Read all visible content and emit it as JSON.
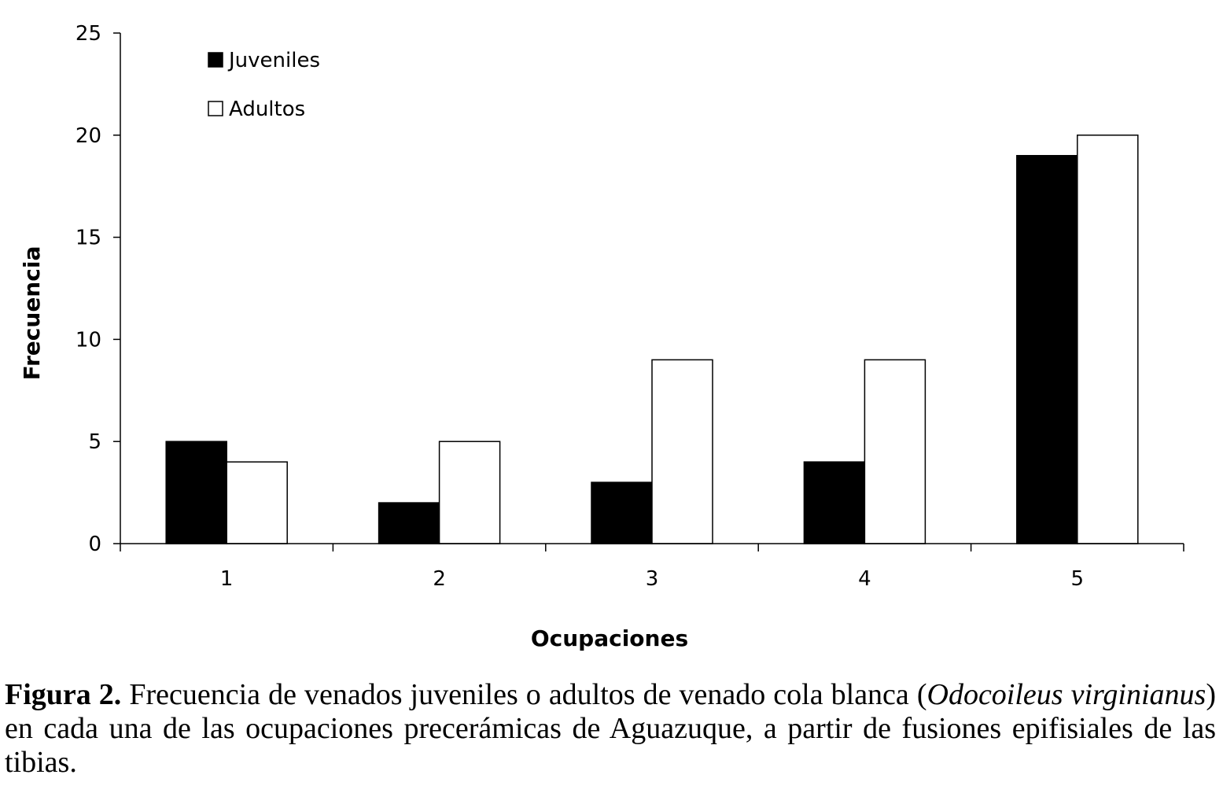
{
  "chart_data": {
    "type": "bar",
    "categories": [
      "1",
      "2",
      "3",
      "4",
      "5"
    ],
    "series": [
      {
        "name": "Juveniles",
        "color": "#000000",
        "values": [
          5,
          2,
          3,
          4,
          19
        ]
      },
      {
        "name": "Adultos",
        "color": "#ffffff",
        "values": [
          4,
          5,
          9,
          9,
          20
        ]
      }
    ],
    "yticks": [
      "0",
      "5",
      "10",
      "15",
      "20",
      "25"
    ],
    "ylim": [
      0,
      25
    ],
    "xlabel": "Ocupaciones",
    "ylabel": "Frecuencia",
    "legend_position": "top-left",
    "grid": false
  },
  "caption": {
    "label": "Figura 2.",
    "text_1": " Frecuencia de venados juveniles o adultos de venado cola blanca (",
    "species_1": "Odocoileus virginianus",
    "text_2": ") en cada una de las ocupaciones precerámicas de Aguazuque, a partir de fusiones epifisiales de las tibias."
  }
}
